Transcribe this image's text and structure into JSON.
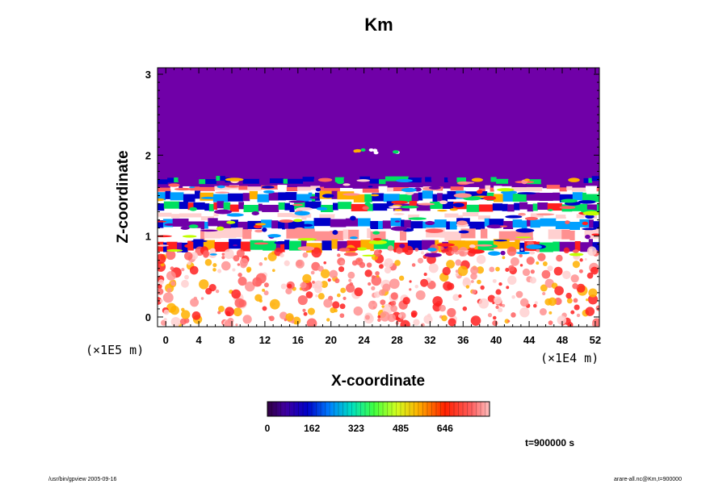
{
  "chart_data": {
    "type": "heatmap",
    "title": "Km",
    "xlabel": "X-coordinate",
    "ylabel": "Z-coordinate",
    "x_unit_label": "(×1E4 m)",
    "y_unit_label": "(×1E5 m)",
    "x_ticks": [
      "0",
      "4",
      "8",
      "12",
      "16",
      "20",
      "24",
      "28",
      "32",
      "36",
      "40",
      "44",
      "48",
      "52"
    ],
    "y_ticks": [
      "0",
      "1",
      "2",
      "3"
    ],
    "xlim": [
      -1,
      52.5
    ],
    "ylim": [
      -0.12,
      3.08
    ],
    "colorbar": {
      "tick_labels": [
        "0",
        "162",
        "323",
        "485",
        "646"
      ],
      "tick_values": [
        0,
        162,
        323,
        485,
        646
      ],
      "range": [
        0,
        808
      ]
    },
    "time_label": "t=900000 s",
    "regions": {
      "uniform_top_value": 0,
      "uniform_top_z_range": [
        1.7,
        3.08
      ],
      "turbulent_z_range": [
        -0.12,
        1.7
      ],
      "description_colors": {
        "low": "#7000a8",
        "high": "#ffffff"
      }
    }
  },
  "footer": {
    "left": "/usr/bin/gpview 2005-09-16",
    "right": "arare-all.nc@Km,t=900000"
  },
  "colors": {
    "top_region": "#7000a8",
    "axis": "#000000"
  }
}
